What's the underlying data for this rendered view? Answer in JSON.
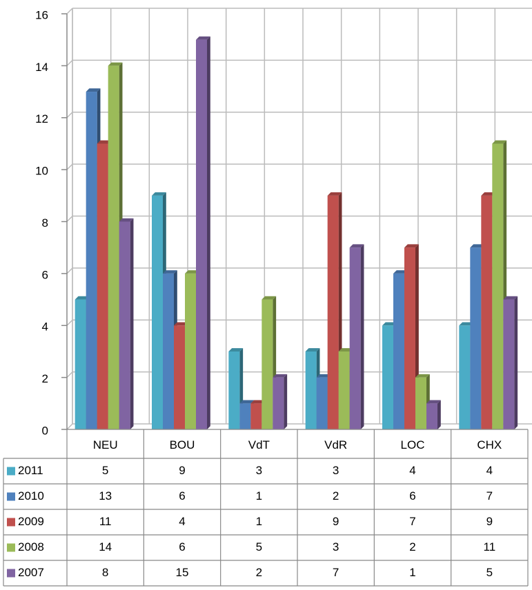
{
  "chart_data": {
    "type": "bar",
    "categories": [
      "NEU",
      "BOU",
      "VdT",
      "VdR",
      "LOC",
      "CHX"
    ],
    "series": [
      {
        "name": "2011",
        "color": "#4bacc6",
        "values": [
          5,
          9,
          3,
          3,
          4,
          4
        ]
      },
      {
        "name": "2010",
        "color": "#4f81bd",
        "values": [
          13,
          6,
          1,
          2,
          6,
          7
        ]
      },
      {
        "name": "2009",
        "color": "#c0504d",
        "values": [
          11,
          4,
          1,
          9,
          7,
          9
        ]
      },
      {
        "name": "2008",
        "color": "#9bbb59",
        "values": [
          14,
          6,
          5,
          3,
          2,
          11
        ]
      },
      {
        "name": "2007",
        "color": "#8064a2",
        "values": [
          8,
          15,
          2,
          7,
          1,
          5
        ]
      }
    ],
    "ylim": [
      0,
      16
    ],
    "yticks": [
      0,
      2,
      4,
      6,
      8,
      10,
      12,
      14,
      16
    ],
    "grid": true
  }
}
